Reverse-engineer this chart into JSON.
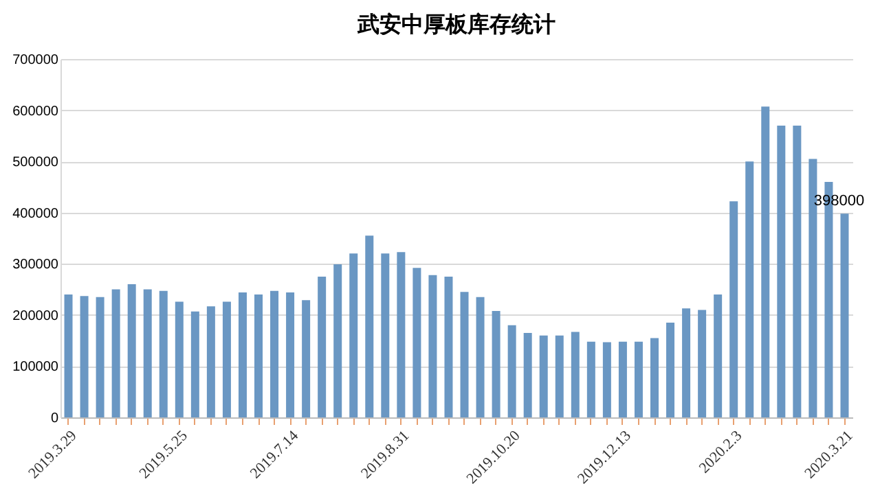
{
  "chart_data": {
    "type": "bar",
    "title": "武安中厚板库存统计",
    "categories": [
      "2019.3.29",
      null,
      null,
      null,
      null,
      null,
      null,
      "2019.5.25",
      null,
      null,
      null,
      null,
      null,
      null,
      "2019.7.14",
      null,
      null,
      null,
      null,
      null,
      null,
      "2019.8.31",
      null,
      null,
      null,
      null,
      null,
      null,
      "2019.10.20",
      null,
      null,
      null,
      null,
      null,
      null,
      "2019.12.13",
      null,
      null,
      null,
      null,
      null,
      null,
      "2020.2.3",
      null,
      null,
      null,
      null,
      null,
      null,
      "2020.3.21"
    ],
    "values": [
      240000,
      237000,
      235000,
      250000,
      260000,
      250000,
      247000,
      226000,
      207000,
      217000,
      226000,
      244000,
      240000,
      247000,
      244000,
      229000,
      275000,
      299000,
      320000,
      355000,
      320000,
      323000,
      292000,
      278000,
      275000,
      245000,
      235000,
      208000,
      180000,
      165000,
      160000,
      160000,
      167000,
      148000,
      147000,
      148000,
      148000,
      155000,
      185000,
      213000,
      210000,
      240000,
      422000,
      500000,
      607000,
      570000,
      570000,
      505000,
      460000,
      398000
    ],
    "value_labels": [
      null,
      null,
      null,
      null,
      null,
      null,
      null,
      null,
      null,
      null,
      null,
      null,
      null,
      null,
      null,
      null,
      null,
      null,
      null,
      null,
      null,
      null,
      null,
      null,
      null,
      null,
      null,
      null,
      null,
      null,
      null,
      null,
      null,
      null,
      null,
      null,
      null,
      null,
      null,
      null,
      null,
      null,
      null,
      null,
      null,
      null,
      null,
      null,
      null,
      "398000"
    ],
    "color": "#6a97c3",
    "ylim": [
      0,
      700000
    ],
    "yticks": [
      0,
      100000,
      200000,
      300000,
      400000,
      500000,
      600000,
      700000
    ],
    "grid": "y",
    "legend": false
  }
}
